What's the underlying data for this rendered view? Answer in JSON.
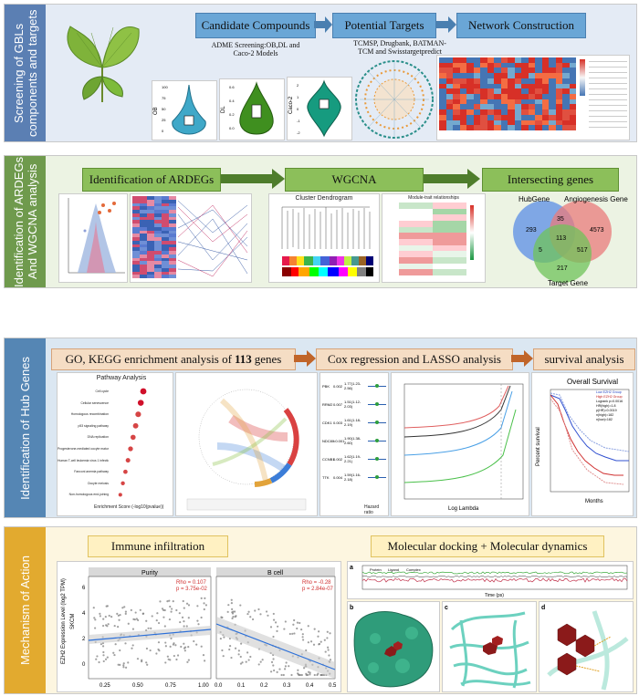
{
  "section1": {
    "label": "Screening of GBLs components and targets",
    "steps": [
      "Candidate Compounds",
      "Potential Targets",
      "Network Construction"
    ],
    "adme_note": "ADME Screening:OB,DL and Caco-2 Models",
    "db_note": "TCMSP, Drugbank, BATMAN-TCM and Swisstargetpredict",
    "violin_labels": [
      "OB",
      "DL",
      "Caco-2"
    ],
    "ob_ticks": [
      "100",
      "75",
      "50",
      "25",
      "0"
    ],
    "dl_ticks": [
      "0.6",
      "0.4",
      "0.2",
      "0.0"
    ],
    "caco_ticks": [
      "2",
      "1",
      "0",
      "-1",
      "-2"
    ]
  },
  "section2": {
    "label": "Identification of ARDEGs And WGCNA analysis",
    "steps": [
      "Identification of ARDEGs",
      "WGCNA",
      "Intersecting genes"
    ],
    "dendro_title": "Cluster Dendrogram",
    "module_title": "Module-trait relationships",
    "venn": {
      "sets": [
        "HubGene",
        "Angiogenesis Gene",
        "Target Gene"
      ],
      "regions": {
        "hub_only": "293",
        "angio_only": "4573",
        "target_only": "217",
        "hub_angio": "35",
        "hub_target": "5",
        "angio_target": "517",
        "all": "113"
      }
    }
  },
  "section3": {
    "label": "Identification of Hub Genes",
    "step1_prefix": "GO, KEGG enrichment analysis of ",
    "step1_num": "113",
    "step1_suffix": " genes",
    "step2": "Cox regression and LASSO analysis",
    "step3": "survival analysis",
    "pathway_title": "Pathway Analysis",
    "pathway_xlabel": "Enrichment Score (-log10(pvalue))",
    "pathway_items": [
      "Cell cycle",
      "Cellular senescence",
      "Homologous recombination",
      "p53 signaling pathway",
      "DNA replication",
      "Progesterone-mediated oocyte maturation",
      "Human T-cell leukemia virus 1 infection",
      "Fanconi anemia pathway",
      "Oocyte meiosis",
      "Non-homologous end-joining"
    ],
    "cox_header": [
      "pvalue",
      "Hazard ratio"
    ],
    "cox_genes": [
      "PBK",
      "RRM2",
      "CDK1",
      "NDC80",
      "CCNB1",
      "TTK"
    ],
    "cox_p": [
      "0.002",
      "0.007",
      "0.003",
      "<0.001",
      "0.002",
      "0.004"
    ],
    "cox_hr": [
      "1.77(1.23-2.56)",
      "1.51(1.12-2.03)",
      "1.61(1.18-2.19)",
      "1.90(1.38-2.60)",
      "1.62(1.19-2.21)",
      "1.59(1.16-2.18)"
    ],
    "lasso_xlabel": "Log Lambda",
    "survival": {
      "title": "Overall Survival",
      "legend": [
        "Low EZH2 Group",
        "High EZH2 Group",
        "Logrank p=0.0016",
        "HR(high)=1.8",
        "p(HR)=0.0019",
        "n(high)=182",
        "n(low)=182"
      ],
      "ylabel": "Percent survival",
      "xlabel": "Months",
      "x_ticks": [
        "0",
        "20",
        "40",
        "60",
        "80",
        "100",
        "120"
      ],
      "y_ticks": [
        "100",
        "75",
        "50",
        "25",
        "0"
      ]
    }
  },
  "section4": {
    "label": "Mechanism of Action",
    "immune_title": "Immune infiltration",
    "docking_title": "Molecular docking + Molecular dynamics",
    "purity_label": "Purity",
    "bcell_label": "B cell",
    "purity_stats": [
      "Rho = 0.107",
      "p = 3.75e-02"
    ],
    "bcell_stats": [
      "Rho = -0.28",
      "p = 2.84e-07"
    ],
    "ylabel": "EZH2 Expression Level (log2 TPM)",
    "tumor_label": "SKCM",
    "purity_xticks": [
      "0.25",
      "0.50",
      "0.75",
      "1.00"
    ],
    "bcell_xticks": [
      "0.0",
      "0.1",
      "0.2",
      "0.3",
      "0.4",
      "0.5"
    ],
    "y_ticks": [
      "6",
      "4",
      "2",
      "0"
    ],
    "panel_letters": [
      "a",
      "b",
      "c",
      "d"
    ],
    "md_xlabel": "Time (ps)",
    "md_ylabel": "RMSD (nm)",
    "md_legend": [
      "Protein",
      "Ligand",
      "Complex"
    ],
    "md_xticks": [
      "0",
      "10000",
      "20000",
      "30000",
      "40000",
      "50000",
      "60000",
      "70000",
      "80000",
      "90000",
      "100000"
    ]
  },
  "colors": {
    "s1_bg": "#e4ebf5",
    "s1_side": "#5b7fb3",
    "s2_bg": "#ecf3e3",
    "s2_side": "#6f9a4d",
    "s3_bg": "#dbe7f2",
    "s3_side": "#5586b4",
    "s4_bg": "#fdf6e0",
    "s4_side": "#e2aa2f"
  }
}
